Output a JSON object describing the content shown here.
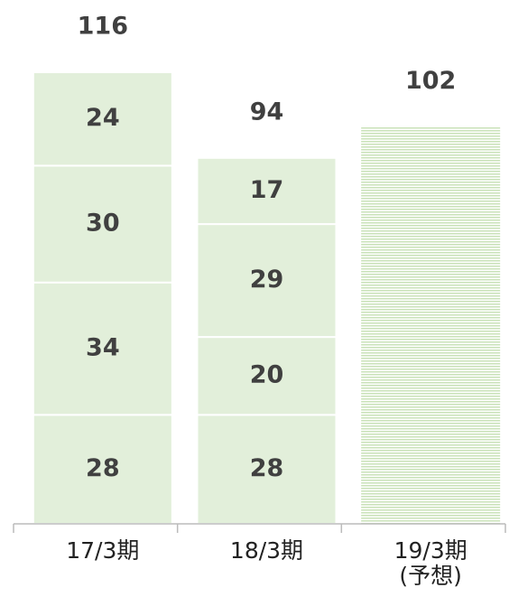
{
  "chart_data": {
    "type": "stacked_bar",
    "categories": [
      "17/3期",
      "18/3期",
      "19/3期\n(予想)"
    ],
    "series": [
      {
        "color": "#e2efda",
        "values": [
          28,
          28,
          null
        ]
      },
      {
        "color": "#e2efda",
        "values": [
          34,
          20,
          null
        ]
      },
      {
        "color": "#e2efda",
        "values": [
          30,
          29,
          null
        ]
      },
      {
        "color": "#e2efda",
        "values": [
          24,
          17,
          null
        ]
      },
      {
        "color": "#c9e2b8",
        "pattern": "horizontal-stripes",
        "values": [
          null,
          null,
          102
        ]
      }
    ],
    "totals": [
      116,
      94,
      102
    ]
  }
}
